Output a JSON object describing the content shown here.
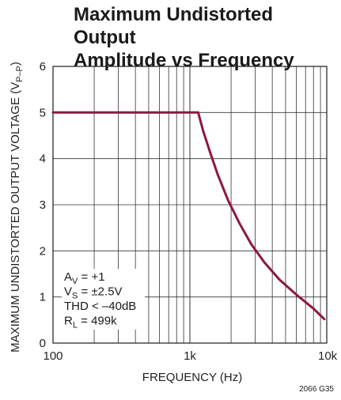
{
  "chart_data": {
    "type": "line",
    "title_lines": [
      "Maximum Undistorted Output",
      "Amplitude vs Frequency"
    ],
    "xlabel": "FREQUENCY (Hz)",
    "ylabel": "MAXIMUM UNDISTORTED OUTPUT VOLTAGE (V",
    "ylabel_sub": "P–P",
    "ylabel_end": ")",
    "x_scale": "log",
    "xlim": [
      100,
      10000
    ],
    "ylim": [
      0,
      6
    ],
    "x_ticks": [
      {
        "value": 100,
        "label": "100"
      },
      {
        "value": 1000,
        "label": "1k"
      },
      {
        "value": 10000,
        "label": "10k"
      }
    ],
    "y_ticks": [
      0,
      1,
      2,
      3,
      4,
      5,
      6
    ],
    "grid": true,
    "line_color": "#8b1a3c",
    "series": [
      {
        "x": [
          100,
          1150,
          1250,
          1400,
          1600,
          1900,
          2300,
          2800,
          3500,
          4500,
          6000,
          8000,
          9600
        ],
        "y": [
          5.0,
          5.0,
          4.6,
          4.15,
          3.65,
          3.1,
          2.6,
          2.15,
          1.75,
          1.38,
          1.05,
          0.75,
          0.52
        ]
      }
    ],
    "annotations": [
      {
        "main": "A",
        "sub": "V",
        "rest": " = +1"
      },
      {
        "main": "V",
        "sub": "S",
        "rest": " = ±2.5V"
      },
      {
        "main": "THD < –40dB",
        "sub": "",
        "rest": ""
      },
      {
        "main": "R",
        "sub": "L",
        "rest": " = 499k"
      }
    ]
  },
  "figure_id": "2066 G35"
}
